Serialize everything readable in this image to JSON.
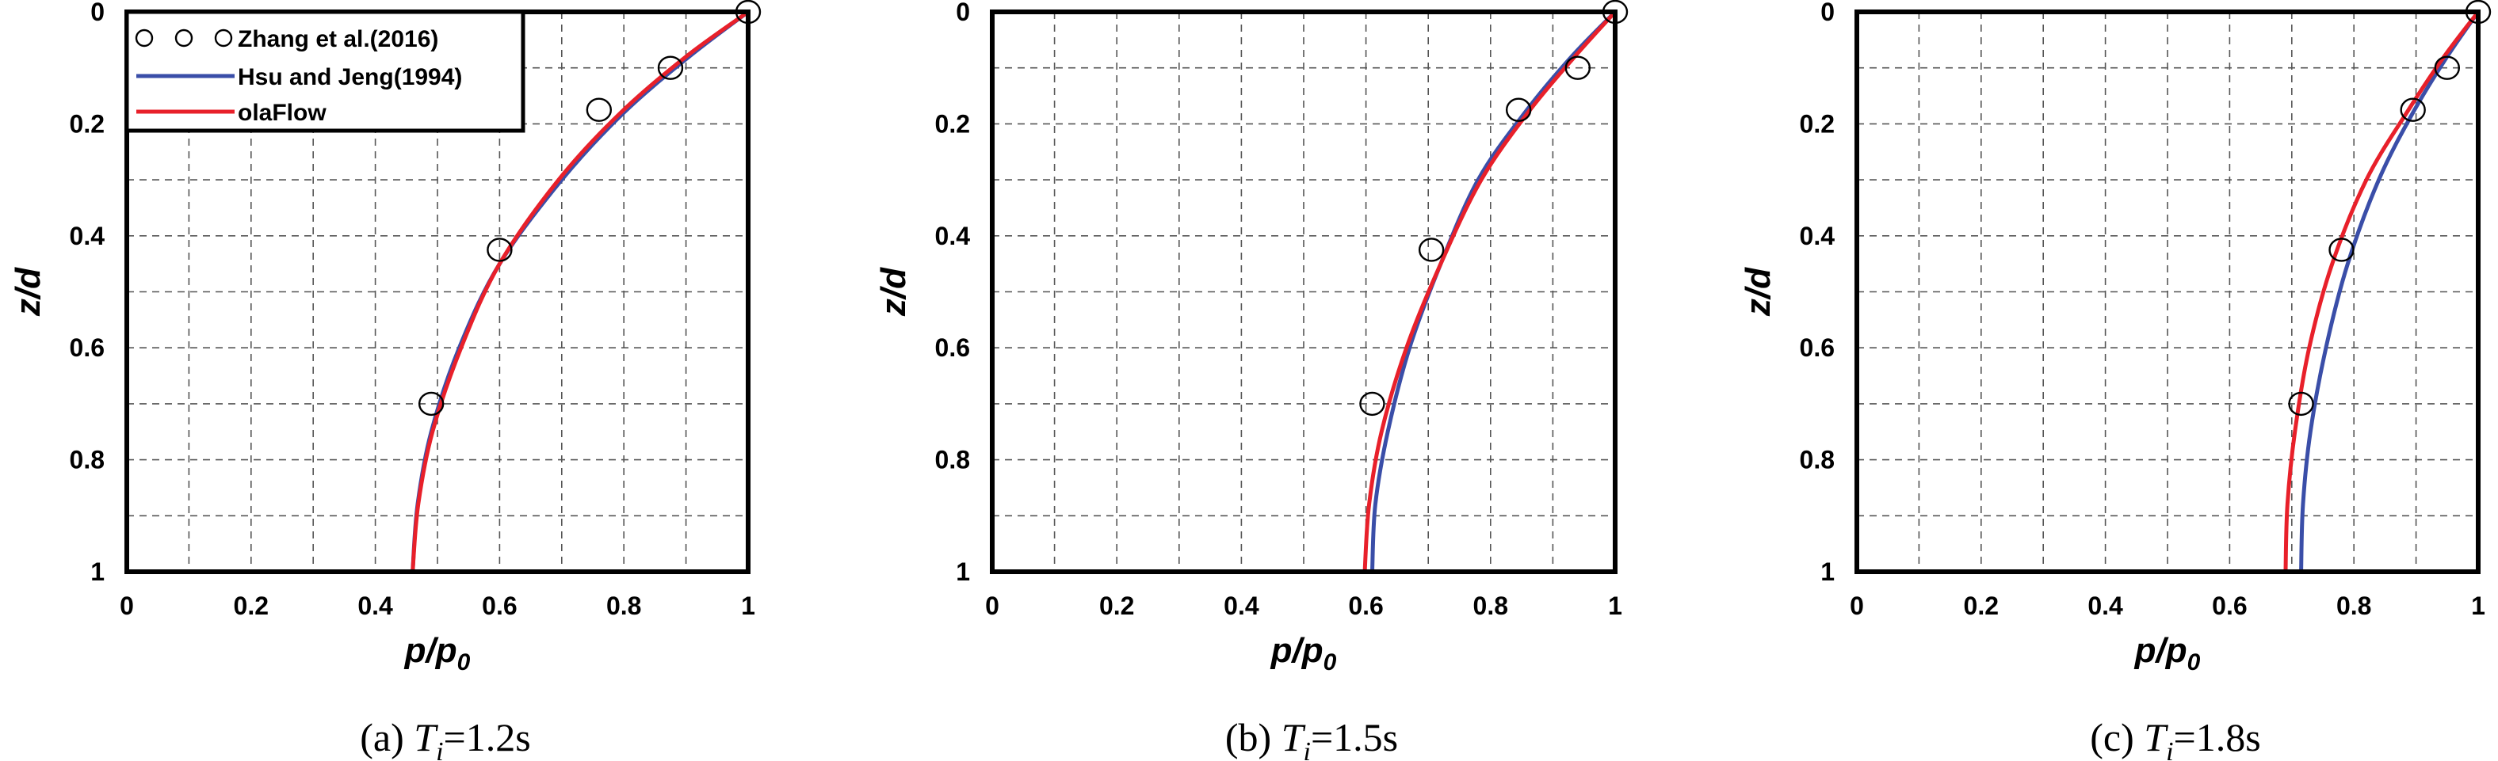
{
  "chart_data": [
    {
      "type": "line",
      "panel_label": "(a)",
      "caption_var": "T",
      "caption_sub": "i",
      "caption_value": "=1.2s",
      "xlabel": "p/p",
      "xlabel_sub": "0",
      "ylabel": "z/d",
      "xlim": [
        0,
        1
      ],
      "ylim": [
        1,
        0
      ],
      "x_ticks": [
        "0",
        "0.2",
        "0.4",
        "0.6",
        "0.8",
        "1"
      ],
      "y_ticks": [
        "0",
        "0.2",
        "0.4",
        "0.6",
        "0.8",
        "1"
      ],
      "grid": true,
      "legend_position": "top-left",
      "legend": [
        "Zhang et al.(2016)",
        "Hsu and Jeng(1994)",
        "olaFlow"
      ],
      "series": [
        {
          "name": "Zhang et al.(2016)",
          "kind": "scatter",
          "color": "#000000",
          "points": [
            [
              1.0,
              0.0
            ],
            [
              0.875,
              0.1
            ],
            [
              0.76,
              0.175
            ],
            [
              0.6,
              0.425
            ],
            [
              0.49,
              0.7
            ]
          ]
        },
        {
          "name": "Hsu and Jeng(1994)",
          "kind": "line",
          "color": "#3a4ea8",
          "points": [
            [
              1.0,
              0.0
            ],
            [
              0.905,
              0.08
            ],
            [
              0.8,
              0.18
            ],
            [
              0.7,
              0.3
            ],
            [
              0.6,
              0.45
            ],
            [
              0.535,
              0.6
            ],
            [
              0.49,
              0.75
            ],
            [
              0.468,
              0.88
            ],
            [
              0.46,
              1.0
            ]
          ]
        },
        {
          "name": "olaFlow",
          "kind": "line",
          "color": "#e8202a",
          "points": [
            [
              1.0,
              0.0
            ],
            [
              0.9,
              0.08
            ],
            [
              0.795,
              0.18
            ],
            [
              0.695,
              0.3
            ],
            [
              0.6,
              0.45
            ],
            [
              0.538,
              0.6
            ],
            [
              0.492,
              0.75
            ],
            [
              0.469,
              0.88
            ],
            [
              0.46,
              1.0
            ]
          ]
        }
      ]
    },
    {
      "type": "line",
      "panel_label": "(b)",
      "caption_var": "T",
      "caption_sub": "i",
      "caption_value": "=1.5s",
      "xlabel": "p/p",
      "xlabel_sub": "0",
      "ylabel": "z/d",
      "xlim": [
        0,
        1
      ],
      "ylim": [
        1,
        0
      ],
      "x_ticks": [
        "0",
        "0.2",
        "0.4",
        "0.6",
        "0.8",
        "1"
      ],
      "y_ticks": [
        "0",
        "0.2",
        "0.4",
        "0.6",
        "0.8",
        "1"
      ],
      "grid": true,
      "series": [
        {
          "name": "Zhang et al.(2016)",
          "kind": "scatter",
          "color": "#000000",
          "points": [
            [
              1.0,
              0.0
            ],
            [
              0.94,
              0.1
            ],
            [
              0.845,
              0.175
            ],
            [
              0.705,
              0.425
            ],
            [
              0.61,
              0.7
            ]
          ]
        },
        {
          "name": "Hsu and Jeng(1994)",
          "kind": "line",
          "color": "#3a4ea8",
          "points": [
            [
              1.0,
              0.0
            ],
            [
              0.93,
              0.08
            ],
            [
              0.855,
              0.18
            ],
            [
              0.78,
              0.3
            ],
            [
              0.72,
              0.45
            ],
            [
              0.67,
              0.6
            ],
            [
              0.635,
              0.75
            ],
            [
              0.615,
              0.88
            ],
            [
              0.61,
              1.0
            ]
          ]
        },
        {
          "name": "olaFlow",
          "kind": "line",
          "color": "#e8202a",
          "points": [
            [
              1.0,
              0.0
            ],
            [
              0.935,
              0.08
            ],
            [
              0.86,
              0.18
            ],
            [
              0.785,
              0.3
            ],
            [
              0.72,
              0.45
            ],
            [
              0.665,
              0.6
            ],
            [
              0.625,
              0.75
            ],
            [
              0.605,
              0.88
            ],
            [
              0.598,
              1.0
            ]
          ]
        }
      ]
    },
    {
      "type": "line",
      "panel_label": "(c)",
      "caption_var": "T",
      "caption_sub": "i",
      "caption_value": "=1.8s",
      "xlabel": "p/p",
      "xlabel_sub": "0",
      "ylabel": "z/d",
      "xlim": [
        0,
        1
      ],
      "ylim": [
        1,
        0
      ],
      "x_ticks": [
        "0",
        "0.2",
        "0.4",
        "0.6",
        "0.8",
        "1"
      ],
      "y_ticks": [
        "0",
        "0.2",
        "0.4",
        "0.6",
        "0.8",
        "1"
      ],
      "grid": true,
      "series": [
        {
          "name": "Zhang et al.(2016)",
          "kind": "scatter",
          "color": "#000000",
          "points": [
            [
              1.0,
              0.0
            ],
            [
              0.95,
              0.1
            ],
            [
              0.895,
              0.175
            ],
            [
              0.78,
              0.425
            ],
            [
              0.715,
              0.7
            ]
          ]
        },
        {
          "name": "Hsu and Jeng(1994)",
          "kind": "line",
          "color": "#3a4ea8",
          "points": [
            [
              1.0,
              0.0
            ],
            [
              0.95,
              0.08
            ],
            [
              0.895,
              0.18
            ],
            [
              0.84,
              0.3
            ],
            [
              0.79,
              0.45
            ],
            [
              0.755,
              0.6
            ],
            [
              0.73,
              0.75
            ],
            [
              0.718,
              0.88
            ],
            [
              0.715,
              1.0
            ]
          ]
        },
        {
          "name": "olaFlow",
          "kind": "line",
          "color": "#e8202a",
          "points": [
            [
              1.0,
              0.0
            ],
            [
              0.945,
              0.08
            ],
            [
              0.885,
              0.18
            ],
            [
              0.82,
              0.3
            ],
            [
              0.765,
              0.45
            ],
            [
              0.728,
              0.6
            ],
            [
              0.705,
              0.75
            ],
            [
              0.693,
              0.88
            ],
            [
              0.69,
              1.0
            ]
          ]
        }
      ]
    }
  ]
}
